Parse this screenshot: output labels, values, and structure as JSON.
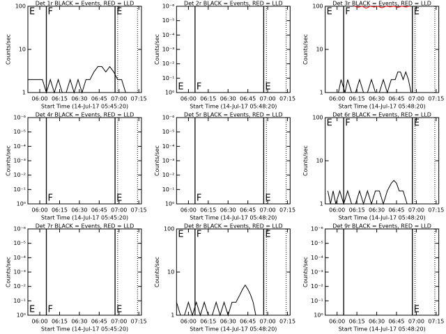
{
  "chart_data": [
    {
      "type": "line",
      "title": "Det 1r BLACK = Events, RED = LLD",
      "x_label": "Start Time (14-Jul-17 05:45:20)",
      "y_label": "Counts/sec",
      "log_y": true,
      "ylim": [
        1,
        100
      ],
      "yticks": [
        1,
        10,
        100
      ],
      "xlim": [
        351,
        437
      ],
      "xticks": [
        {
          "value": 360,
          "label": "06:00"
        },
        {
          "value": 375,
          "label": "06:15"
        },
        {
          "value": 390,
          "label": "06:30"
        },
        {
          "value": 405,
          "label": "06:45"
        },
        {
          "value": 420,
          "label": "07:00"
        },
        {
          "value": 435,
          "label": "07:15"
        }
      ],
      "vlines": [
        {
          "x": 365,
          "style": "solid"
        },
        {
          "x": 417,
          "style": "solid"
        },
        {
          "x": 419,
          "style": "dotted"
        },
        {
          "x": 434,
          "style": "dotted"
        }
      ],
      "annotations": [
        "E",
        "F",
        "E"
      ],
      "annotation_position": "top",
      "series": [
        {
          "color": "#000000",
          "x": [
            351,
            355,
            358,
            362,
            365,
            368,
            371,
            374,
            377,
            380,
            383,
            386,
            389,
            392,
            395,
            398,
            401,
            404,
            407,
            410,
            413,
            416,
            419,
            422,
            425
          ],
          "values": [
            2,
            2,
            2,
            2,
            1,
            2,
            1,
            2,
            1,
            1,
            2,
            1,
            2,
            1,
            2,
            2,
            3,
            4,
            4,
            3,
            4,
            3,
            2,
            2,
            1
          ]
        }
      ]
    },
    {
      "type": "line",
      "title": "Det 2r BLACK = Events, RED = LLD",
      "x_label": "Start Time (14-Jul-17 05:48:20)",
      "y_label": "Counts/sec",
      "log_y": true,
      "ylim": [
        1,
        1e-06
      ],
      "yticks": [
        {
          "value": 1,
          "label": "10⁰"
        },
        {
          "value": 0.1,
          "label": "10⁻¹"
        },
        {
          "value": 0.01,
          "label": "10⁻²"
        },
        {
          "value": 0.001,
          "label": "10⁻³"
        },
        {
          "value": 0.0001,
          "label": "10⁻⁴"
        },
        {
          "value": 1e-05,
          "label": "10⁻⁵"
        },
        {
          "value": 1e-06,
          "label": "10⁻⁶"
        }
      ],
      "xlim": [
        351,
        437
      ],
      "xticks": [
        {
          "value": 360,
          "label": "06:00"
        },
        {
          "value": 375,
          "label": "06:15"
        },
        {
          "value": 390,
          "label": "06:30"
        },
        {
          "value": 405,
          "label": "06:45"
        },
        {
          "value": 420,
          "label": "07:00"
        },
        {
          "value": 435,
          "label": "07:15"
        }
      ],
      "vlines": [
        {
          "x": 365,
          "style": "solid"
        },
        {
          "x": 417,
          "style": "solid"
        },
        {
          "x": 419,
          "style": "dotted"
        },
        {
          "x": 434,
          "style": "dotted"
        }
      ],
      "annotations": [
        "E",
        "F",
        "E"
      ],
      "annotation_position": "bottom",
      "series": []
    },
    {
      "type": "line",
      "title": "Det 3r BLACK = Events, RED = LLD",
      "x_label": "Start Time (14-Jul-17 05:48:20)",
      "y_label": "Counts/sec",
      "log_y": true,
      "ylim": [
        1,
        100
      ],
      "yticks": [
        1,
        10,
        100
      ],
      "xlim": [
        351,
        437
      ],
      "xticks": [
        {
          "value": 360,
          "label": "06:00"
        },
        {
          "value": 375,
          "label": "06:15"
        },
        {
          "value": 390,
          "label": "06:30"
        },
        {
          "value": 405,
          "label": "06:45"
        },
        {
          "value": 420,
          "label": "07:00"
        },
        {
          "value": 435,
          "label": "07:15"
        }
      ],
      "vlines": [
        {
          "x": 365,
          "style": "solid"
        },
        {
          "x": 417,
          "style": "solid"
        },
        {
          "x": 419,
          "style": "dotted"
        },
        {
          "x": 434,
          "style": "dotted"
        }
      ],
      "annotations": [
        "E",
        "F",
        "E"
      ],
      "annotation_position": "top",
      "series": [
        {
          "color": "#000000",
          "x": [
            361,
            363,
            366,
            368,
            371,
            374,
            377,
            380,
            383,
            386,
            389,
            392,
            395,
            398,
            401,
            404,
            406,
            408,
            410,
            412,
            414,
            416
          ],
          "values": [
            1,
            2,
            1,
            2,
            1,
            1,
            2,
            1,
            1,
            2,
            1,
            1,
            2,
            1,
            2,
            2,
            3,
            3,
            2,
            3,
            2,
            1
          ]
        },
        {
          "color": "#ff0000",
          "x": [
            373,
            376,
            379,
            382,
            385,
            388,
            391,
            394,
            397,
            400,
            403,
            406,
            409,
            412,
            415
          ],
          "values": [
            100,
            95,
            100,
            90,
            100,
            96,
            100,
            92,
            100,
            97,
            100,
            94,
            100,
            96,
            100
          ]
        }
      ]
    },
    {
      "type": "line",
      "title": "Det 4r BLACK = Events, RED = LLD",
      "x_label": "Start Time (14-Jul-17 05:45:20)",
      "y_label": "Counts/sec",
      "log_y": true,
      "ylim": [
        1,
        1e-06
      ],
      "yticks": [
        {
          "value": 1,
          "label": "10⁰"
        },
        {
          "value": 0.1,
          "label": "10⁻¹"
        },
        {
          "value": 0.01,
          "label": "10⁻²"
        },
        {
          "value": 0.001,
          "label": "10⁻³"
        },
        {
          "value": 0.0001,
          "label": "10⁻⁴"
        },
        {
          "value": 1e-05,
          "label": "10⁻⁵"
        },
        {
          "value": 1e-06,
          "label": "10⁻⁶"
        }
      ],
      "xlim": [
        351,
        437
      ],
      "xticks": [
        {
          "value": 360,
          "label": "06:00"
        },
        {
          "value": 375,
          "label": "06:15"
        },
        {
          "value": 390,
          "label": "06:30"
        },
        {
          "value": 405,
          "label": "06:45"
        },
        {
          "value": 420,
          "label": "07:00"
        },
        {
          "value": 435,
          "label": "07:15"
        }
      ],
      "vlines": [
        {
          "x": 365,
          "style": "solid"
        },
        {
          "x": 417,
          "style": "solid"
        },
        {
          "x": 419,
          "style": "dotted"
        },
        {
          "x": 434,
          "style": "dotted"
        }
      ],
      "annotations": [
        "F",
        "E"
      ],
      "annotation_position": "bottom",
      "series": []
    },
    {
      "type": "line",
      "title": "Det 5r BLACK = Events, RED = LLD",
      "x_label": "Start Time (14-Jul-17 05:48:20)",
      "y_label": "Counts/sec",
      "log_y": true,
      "ylim": [
        1,
        1e-06
      ],
      "yticks": [
        {
          "value": 1,
          "label": "10⁰"
        },
        {
          "value": 0.1,
          "label": "10⁻¹"
        },
        {
          "value": 0.01,
          "label": "10⁻²"
        },
        {
          "value": 0.001,
          "label": "10⁻³"
        },
        {
          "value": 0.0001,
          "label": "10⁻⁴"
        },
        {
          "value": 1e-05,
          "label": "10⁻⁵"
        },
        {
          "value": 1e-06,
          "label": "10⁻⁶"
        }
      ],
      "xlim": [
        351,
        437
      ],
      "xticks": [
        {
          "value": 360,
          "label": "06:00"
        },
        {
          "value": 375,
          "label": "06:15"
        },
        {
          "value": 390,
          "label": "06:30"
        },
        {
          "value": 405,
          "label": "06:45"
        },
        {
          "value": 420,
          "label": "07:00"
        },
        {
          "value": 435,
          "label": "07:15"
        }
      ],
      "vlines": [
        {
          "x": 365,
          "style": "solid"
        },
        {
          "x": 417,
          "style": "solid"
        },
        {
          "x": 419,
          "style": "dotted"
        },
        {
          "x": 434,
          "style": "dotted"
        }
      ],
      "annotations": [
        "F",
        "E"
      ],
      "annotation_position": "bottom",
      "series": []
    },
    {
      "type": "line",
      "title": "Det 6r BLACK = Events, RED = LLD",
      "x_label": "Start Time (14-Jul-17 05:48:20)",
      "y_label": "Counts/sec",
      "log_y": true,
      "ylim": [
        1,
        100
      ],
      "yticks": [
        1,
        10,
        100
      ],
      "xlim": [
        351,
        437
      ],
      "xticks": [
        {
          "value": 360,
          "label": "06:00"
        },
        {
          "value": 375,
          "label": "06:15"
        },
        {
          "value": 390,
          "label": "06:30"
        },
        {
          "value": 405,
          "label": "06:45"
        },
        {
          "value": 420,
          "label": "07:00"
        },
        {
          "value": 435,
          "label": "07:15"
        }
      ],
      "vlines": [
        {
          "x": 365,
          "style": "solid"
        },
        {
          "x": 417,
          "style": "solid"
        },
        {
          "x": 419,
          "style": "dotted"
        },
        {
          "x": 434,
          "style": "dotted"
        }
      ],
      "annotations": [
        "E",
        "F",
        "E"
      ],
      "annotation_position": "top",
      "series": [
        {
          "color": "#000000",
          "x": [
            353,
            355,
            357,
            359,
            362,
            365,
            368,
            371,
            374,
            377,
            380,
            383,
            386,
            389,
            392,
            395,
            398,
            401,
            403,
            405,
            407,
            410,
            413,
            416
          ],
          "values": [
            2,
            1,
            2,
            1,
            2,
            1,
            2,
            1,
            1,
            2,
            1,
            2,
            1,
            2,
            2,
            1,
            2,
            3,
            3.5,
            3,
            2,
            2,
            1,
            1
          ]
        }
      ]
    },
    {
      "type": "line",
      "title": "Det 7r BLACK = Events, RED = LLD",
      "x_label": "Start Time (14-Jul-17 05:45:20)",
      "y_label": "Counts/sec",
      "log_y": true,
      "ylim": [
        1,
        1e-06
      ],
      "yticks": [
        {
          "value": 1,
          "label": "10⁰"
        },
        {
          "value": 0.1,
          "label": "10⁻¹"
        },
        {
          "value": 0.01,
          "label": "10⁻²"
        },
        {
          "value": 0.001,
          "label": "10⁻³"
        },
        {
          "value": 0.0001,
          "label": "10⁻⁴"
        },
        {
          "value": 1e-05,
          "label": "10⁻⁵"
        },
        {
          "value": 1e-06,
          "label": "10⁻⁶"
        }
      ],
      "xlim": [
        351,
        437
      ],
      "xticks": [
        {
          "value": 360,
          "label": "06:00"
        },
        {
          "value": 375,
          "label": "06:15"
        },
        {
          "value": 390,
          "label": "06:30"
        },
        {
          "value": 405,
          "label": "06:45"
        },
        {
          "value": 420,
          "label": "07:00"
        },
        {
          "value": 435,
          "label": "07:15"
        }
      ],
      "vlines": [
        {
          "x": 365,
          "style": "solid"
        },
        {
          "x": 417,
          "style": "solid"
        },
        {
          "x": 419,
          "style": "dotted"
        },
        {
          "x": 434,
          "style": "dotted"
        }
      ],
      "annotations": [
        "E",
        "F",
        "E"
      ],
      "annotation_position": "bottom",
      "series": []
    },
    {
      "type": "line",
      "title": "Det 8r BLACK = Events, RED = LLD",
      "x_label": "Start Time (14-Jul-17 05:48:20)",
      "y_label": "Counts/sec",
      "log_y": true,
      "ylim": [
        1,
        100
      ],
      "yticks": [
        1,
        10,
        100
      ],
      "xlim": [
        351,
        437
      ],
      "xticks": [
        {
          "value": 360,
          "label": "06:00"
        },
        {
          "value": 375,
          "label": "06:15"
        },
        {
          "value": 390,
          "label": "06:30"
        },
        {
          "value": 405,
          "label": "06:45"
        },
        {
          "value": 420,
          "label": "07:00"
        },
        {
          "value": 435,
          "label": "07:15"
        }
      ],
      "vlines": [
        {
          "x": 365,
          "style": "solid"
        },
        {
          "x": 417,
          "style": "solid"
        },
        {
          "x": 419,
          "style": "dotted"
        },
        {
          "x": 434,
          "style": "dotted"
        }
      ],
      "annotations": [
        "E",
        "F",
        "E"
      ],
      "annotation_position": "top",
      "series": [
        {
          "color": "#000000",
          "x": [
            351,
            354,
            357,
            360,
            363,
            366,
            369,
            372,
            375,
            378,
            381,
            384,
            387,
            390,
            393,
            396,
            399,
            401,
            403,
            405,
            407,
            409,
            411
          ],
          "values": [
            2,
            1,
            1,
            2,
            1,
            2,
            1,
            2,
            1,
            1,
            2,
            1,
            2,
            1,
            2,
            2,
            3,
            4,
            5,
            4,
            3,
            2,
            1
          ]
        }
      ]
    },
    {
      "type": "line",
      "title": "Det 9r BLACK = Events, RED = LLD",
      "x_label": "Start Time (14-Jul-17 05:48:20)",
      "y_label": "Counts/sec",
      "log_y": true,
      "ylim": [
        1,
        1e-06
      ],
      "yticks": [
        {
          "value": 1,
          "label": "10⁰"
        },
        {
          "value": 0.1,
          "label": "10⁻¹"
        },
        {
          "value": 0.01,
          "label": "10⁻²"
        },
        {
          "value": 0.001,
          "label": "10⁻³"
        },
        {
          "value": 0.0001,
          "label": "10⁻⁴"
        },
        {
          "value": 1e-05,
          "label": "10⁻⁵"
        },
        {
          "value": 1e-06,
          "label": "10⁻⁶"
        }
      ],
      "xlim": [
        351,
        437
      ],
      "xticks": [
        {
          "value": 360,
          "label": "06:00"
        },
        {
          "value": 375,
          "label": "06:15"
        },
        {
          "value": 390,
          "label": "06:30"
        },
        {
          "value": 405,
          "label": "06:45"
        },
        {
          "value": 420,
          "label": "07:00"
        },
        {
          "value": 435,
          "label": "07:15"
        }
      ],
      "vlines": [
        {
          "x": 365,
          "style": "solid"
        },
        {
          "x": 417,
          "style": "solid"
        },
        {
          "x": 419,
          "style": "dotted"
        },
        {
          "x": 434,
          "style": "dotted"
        }
      ],
      "annotations": [
        "E"
      ],
      "annotation_position": "bottom",
      "series": []
    }
  ]
}
